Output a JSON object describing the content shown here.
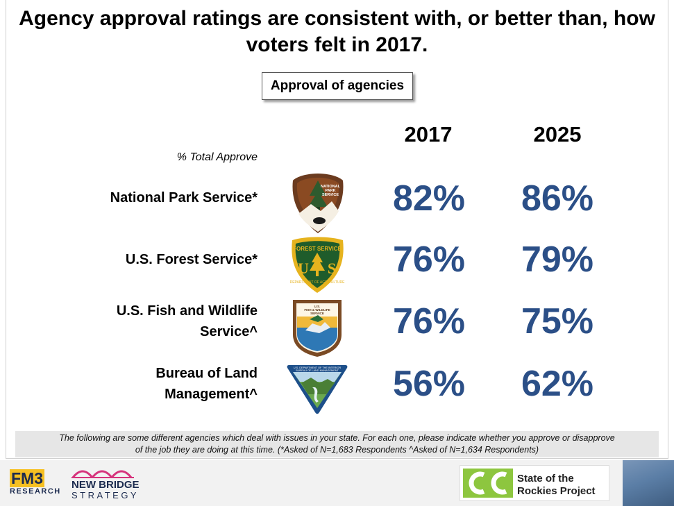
{
  "chart_data": {
    "type": "table",
    "title": "Agency approval ratings are consistent with, or better than, how voters felt in 2017.",
    "subtitle": "Approval of agencies",
    "columns": [
      "2017",
      "2025"
    ],
    "measure_label": "% Total Approve",
    "rows": [
      {
        "agency": "National Park Service*",
        "values": [
          82,
          86
        ],
        "display": [
          "82%",
          "86%"
        ]
      },
      {
        "agency": "U.S. Forest Service*",
        "values": [
          76,
          79
        ],
        "display": [
          "76%",
          "79%"
        ]
      },
      {
        "agency_line1": "U.S. Fish and Wildlife",
        "agency_line2": "Service^",
        "values": [
          76,
          75
        ],
        "display": [
          "76%",
          "75%"
        ]
      },
      {
        "agency_line1": "Bureau of Land",
        "agency_line2": "Management^",
        "values": [
          56,
          62
        ],
        "display": [
          "56%",
          "62%"
        ]
      }
    ]
  },
  "footnote": {
    "line1": "The following are some different agencies which deal with issues in your state. For each one, please indicate whether you approve or disapprove",
    "line2": "of the job they are doing at this time. (*Asked of N=1,683 Respondents ^Asked of N=1,634 Respondents)"
  },
  "logos": {
    "nps_text": [
      "NATIONAL",
      "PARK",
      "SERVICE"
    ],
    "fs_text": [
      "FOREST SERVICE",
      "U",
      "S",
      "DEPARTMENT OF AGRICULTURE"
    ],
    "fws_text": [
      "U.S.",
      "FISH & WILDLIFE",
      "SERVICE"
    ],
    "blm_text": [
      "U.S. DEPARTMENT OF THE INTERIOR",
      "BUREAU OF LAND MANAGEMENT"
    ]
  },
  "footer": {
    "fm3_top": "FM3",
    "fm3_bottom": "RESEARCH",
    "newbridge_line1": "NEW BRIDGE",
    "newbridge_line2": "STRATEGY",
    "sor_line1": "State of the",
    "sor_line2": "Rockies Project"
  },
  "colors": {
    "value_text": "#2b4f87",
    "fm3_yellow": "#f6c022",
    "navy": "#1c2b4f",
    "sor_green": "#8dc63f"
  }
}
